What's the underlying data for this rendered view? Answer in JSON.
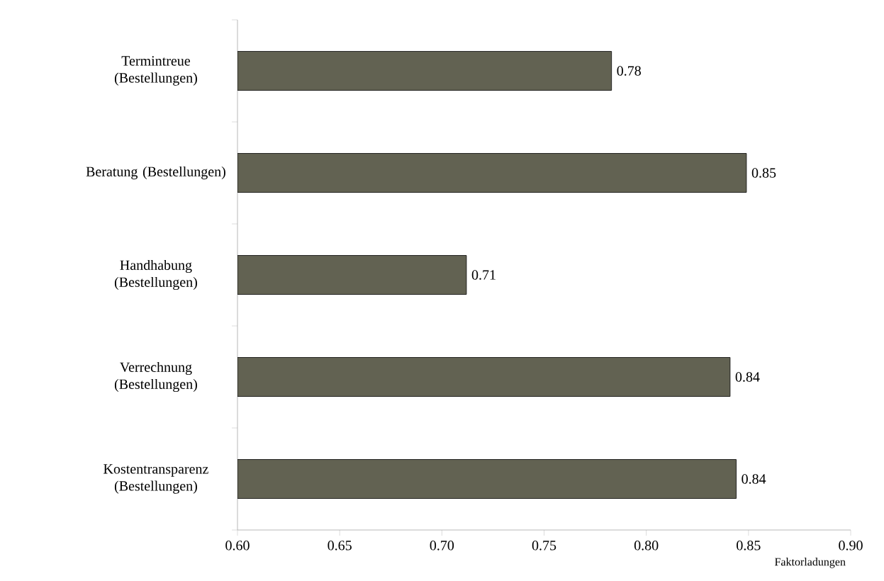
{
  "chart_data": {
    "type": "bar",
    "orientation": "horizontal",
    "xlabel": "Faktorladungen",
    "categories": [
      "Termintreue (Bestellungen)",
      "Beratung (Bestellungen)",
      "Handhabung (Bestellungen)",
      "Verrechnung (Bestellungen)",
      "Kostentransparenz (Bestellungen)"
    ],
    "values": [
      0.783,
      0.849,
      0.712,
      0.841,
      0.844
    ],
    "value_labels": [
      "0.78",
      "0.85",
      "0.71",
      "0.84",
      "0.84"
    ],
    "color": "#626252",
    "xlim": [
      0.6,
      0.9
    ],
    "xticks": [
      {
        "value": 0.6,
        "label": "0.60"
      },
      {
        "value": 0.65,
        "label": "0.65"
      },
      {
        "value": 0.7,
        "label": "0.70"
      },
      {
        "value": 0.75,
        "label": "0.75"
      },
      {
        "value": 0.8,
        "label": "0.80"
      },
      {
        "value": 0.85,
        "label": "0.85"
      },
      {
        "value": 0.9,
        "label": "0.90"
      }
    ]
  }
}
